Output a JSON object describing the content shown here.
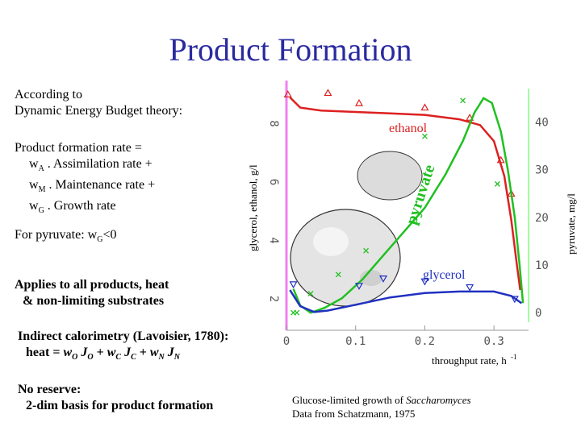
{
  "title": "Product Formation",
  "intro": {
    "line1": "According to",
    "line2": "Dynamic Energy Budget theory:"
  },
  "rate": {
    "line1": "Product formation rate =",
    "line2": {
      "w": "w",
      "sub": "A",
      "text": " . Assimilation rate +"
    },
    "line3": {
      "w": "w",
      "sub": "M",
      "text": " . Maintenance rate +"
    },
    "line4": {
      "w": "w",
      "sub": "G",
      "text": " . Growth rate"
    }
  },
  "pyruvate_note": {
    "text": "For pyruvate: w",
    "sub": "G",
    "rest": "<0"
  },
  "applies": {
    "line1": "Applies to all products, heat",
    "line2": "& non-limiting substrates"
  },
  "calorimetry": {
    "line1": "Indirect calorimetry (Lavoisier, 1780):",
    "prefix": "heat = ",
    "terms": [
      {
        "w": "w",
        "wsub": "O",
        "j": "J",
        "jsub": "O",
        "sep": " + "
      },
      {
        "w": "w",
        "wsub": "C",
        "j": "J",
        "jsub": "C",
        "sep": " + "
      },
      {
        "w": "w",
        "wsub": "N",
        "j": "J",
        "jsub": "N",
        "sep": ""
      }
    ]
  },
  "reserve": {
    "line1": "No reserve:",
    "line2": "2-dim basis for product formation"
  },
  "caption": {
    "line1_prefix": "Glucose-limited growth of ",
    "line1_italic": "Saccharomyces",
    "line2": "Data from Schatzmann, 1975"
  },
  "colors": {
    "title": "#2a2aa0",
    "ethanol": "#dd2020",
    "pyruvate": "#20c020",
    "glycerol": "#2030c0",
    "left_axis": "#f080f0",
    "right_axis": "#80ff80"
  },
  "chart_data": {
    "type": "line",
    "xlabel": "throughput rate, h",
    "xlabel_sup": "-1",
    "ylabel_left": "glycerol, ethanol, g/l",
    "ylabel_right": "pyruvate, mg/l",
    "x_ticks": [
      "0",
      "0.1",
      "0.2",
      "0.3"
    ],
    "y_left_ticks": [
      "2",
      "4",
      "6",
      "8"
    ],
    "y_right_ticks": [
      "0",
      "10",
      "20",
      "30",
      "40"
    ],
    "xlim": [
      0,
      0.35
    ],
    "ylim_left": [
      1.2,
      9.2
    ],
    "ylim_right": [
      -2,
      47
    ],
    "series": [
      {
        "name": "ethanol",
        "axis": "left",
        "color": "#dd2020",
        "marker": "triangle-up",
        "curve": [
          [
            0.005,
            8.9
          ],
          [
            0.02,
            8.55
          ],
          [
            0.05,
            8.45
          ],
          [
            0.1,
            8.4
          ],
          [
            0.15,
            8.35
          ],
          [
            0.2,
            8.3
          ],
          [
            0.25,
            8.15
          ],
          [
            0.28,
            7.95
          ],
          [
            0.3,
            7.4
          ],
          [
            0.315,
            6.2
          ],
          [
            0.325,
            4.7
          ],
          [
            0.333,
            3.2
          ],
          [
            0.338,
            2.3
          ]
        ],
        "points": [
          [
            0.002,
            9.0
          ],
          [
            0.06,
            9.05
          ],
          [
            0.105,
            8.7
          ],
          [
            0.2,
            8.55
          ],
          [
            0.265,
            8.2
          ],
          [
            0.31,
            6.75
          ],
          [
            0.325,
            5.6
          ]
        ]
      },
      {
        "name": "pyruvate",
        "axis": "right",
        "color": "#20c020",
        "marker": "x",
        "curve": [
          [
            0.01,
            5
          ],
          [
            0.02,
            1.5
          ],
          [
            0.035,
            0
          ],
          [
            0.055,
            1
          ],
          [
            0.08,
            3
          ],
          [
            0.11,
            7
          ],
          [
            0.14,
            12
          ],
          [
            0.17,
            17
          ],
          [
            0.2,
            22
          ],
          [
            0.23,
            29
          ],
          [
            0.255,
            36
          ],
          [
            0.272,
            42
          ],
          [
            0.285,
            45
          ],
          [
            0.297,
            44
          ],
          [
            0.31,
            38
          ],
          [
            0.32,
            30
          ],
          [
            0.33,
            20
          ],
          [
            0.337,
            10
          ],
          [
            0.342,
            2
          ]
        ],
        "points": [
          [
            0.01,
            0
          ],
          [
            0.015,
            0
          ],
          [
            0.035,
            4
          ],
          [
            0.075,
            8
          ],
          [
            0.115,
            13
          ],
          [
            0.2,
            37
          ],
          [
            0.255,
            44.5
          ],
          [
            0.305,
            27
          ]
        ]
      },
      {
        "name": "glycerol",
        "axis": "left",
        "color": "#2030c0",
        "marker": "triangle-down",
        "curve": [
          [
            0.005,
            2.3
          ],
          [
            0.02,
            1.75
          ],
          [
            0.04,
            1.55
          ],
          [
            0.06,
            1.6
          ],
          [
            0.1,
            1.8
          ],
          [
            0.15,
            2.05
          ],
          [
            0.2,
            2.2
          ],
          [
            0.25,
            2.25
          ],
          [
            0.3,
            2.25
          ],
          [
            0.325,
            2.1
          ],
          [
            0.34,
            1.85
          ]
        ],
        "points": [
          [
            0.01,
            2.5
          ],
          [
            0.105,
            2.45
          ],
          [
            0.14,
            2.7
          ],
          [
            0.2,
            2.6
          ],
          [
            0.265,
            2.4
          ],
          [
            0.33,
            2.0
          ]
        ]
      }
    ],
    "annotations": [
      "ethanol",
      "pyruvate",
      "glycerol"
    ]
  }
}
